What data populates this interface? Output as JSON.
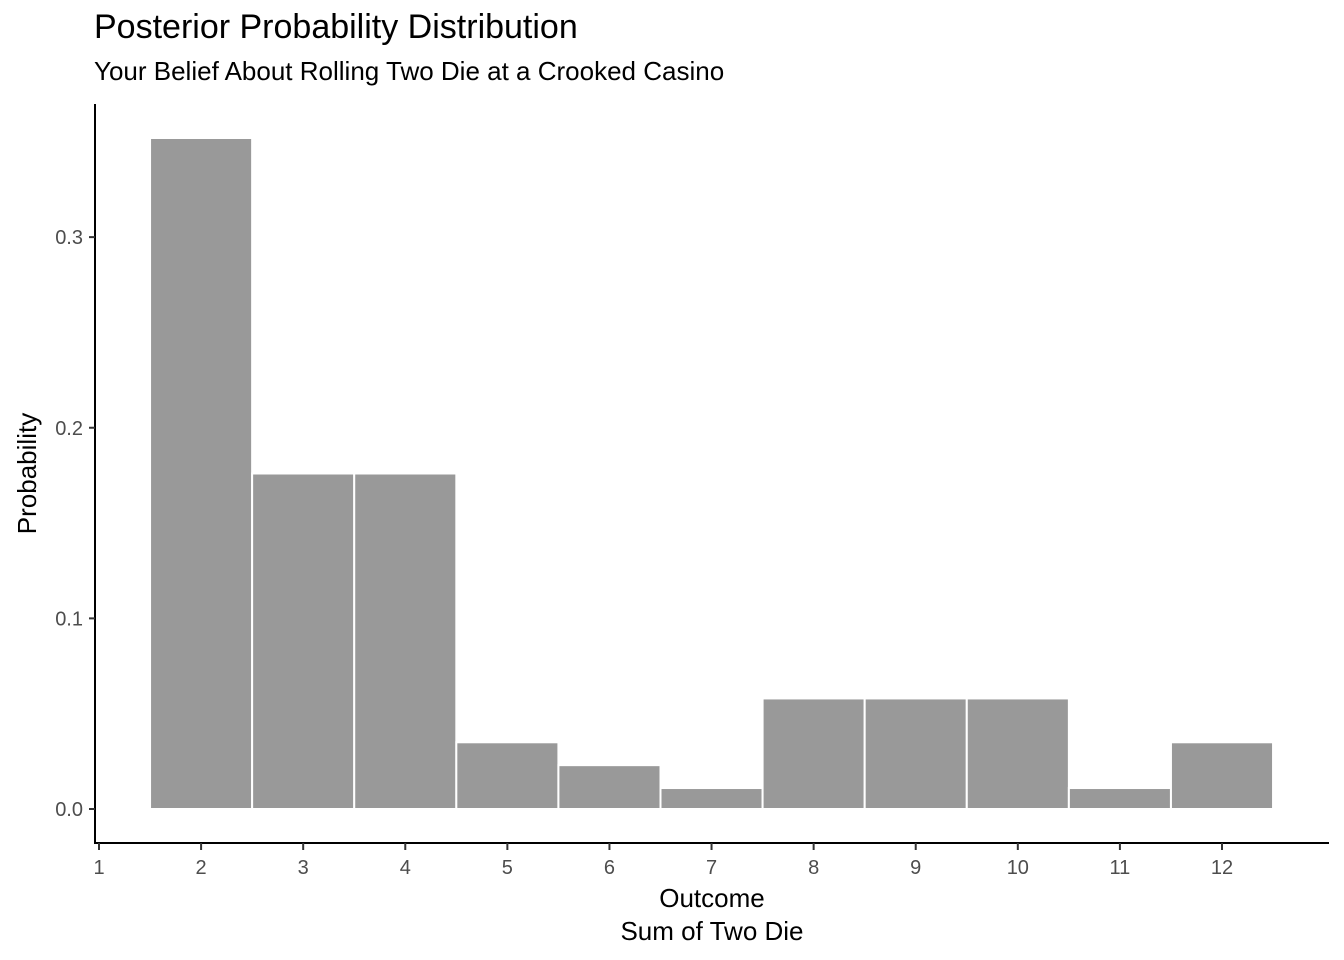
{
  "chart_data": {
    "type": "bar",
    "title": "Posterior Probability Distribution",
    "subtitle": "Your Belief About Rolling Two Die at a Crooked Casino",
    "xlabel": [
      "Outcome",
      "Sum of Two Die"
    ],
    "ylabel": "Probability",
    "categories": [
      2,
      3,
      4,
      5,
      6,
      7,
      8,
      9,
      10,
      11,
      12
    ],
    "values": [
      0.352,
      0.176,
      0.176,
      0.035,
      0.023,
      0.011,
      0.058,
      0.058,
      0.058,
      0.011,
      0.035
    ],
    "xticks": [
      "1",
      "2",
      "3",
      "4",
      "5",
      "6",
      "7",
      "8",
      "9",
      "10",
      "11",
      "12"
    ],
    "yticks": [
      "0.0",
      "0.1",
      "0.2",
      "0.3"
    ],
    "xlim": [
      1,
      13
    ],
    "ylim": [
      0,
      0.352
    ],
    "grid": false,
    "legend": "none",
    "bar_color": "#999999",
    "bar_outline": "#ffffff"
  }
}
